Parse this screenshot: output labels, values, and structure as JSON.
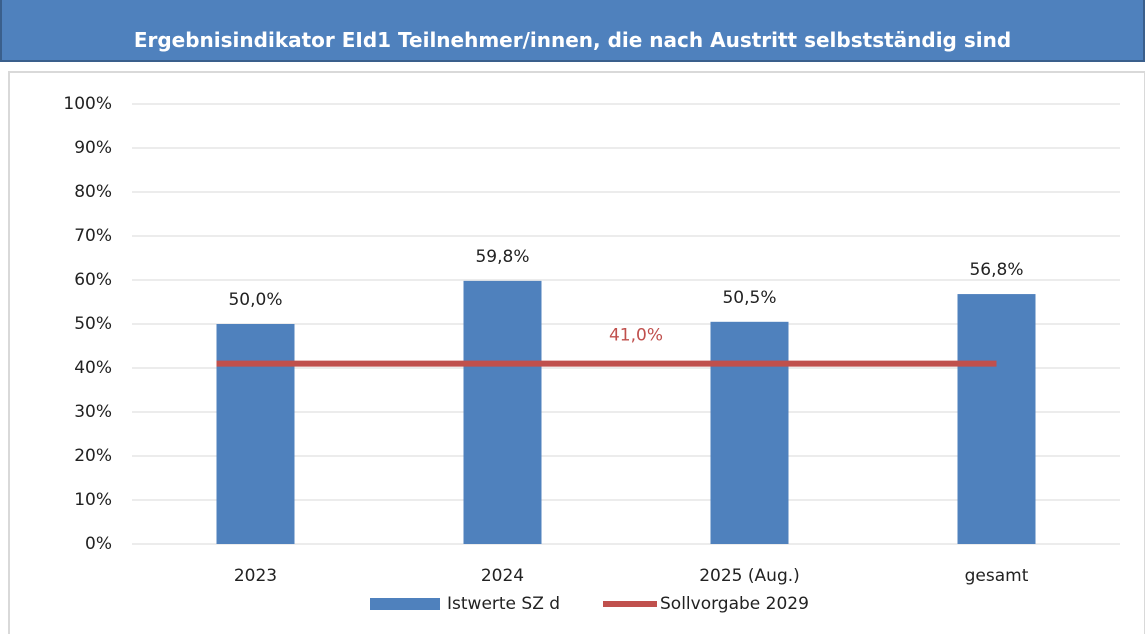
{
  "chart_data": {
    "type": "bar",
    "title": "Ergebnisindikator EId1 Teilnehmer/innen, die nach Austritt selbstständig sind",
    "categories": [
      "2023",
      "2024",
      "2025 (Aug.)",
      "gesamt"
    ],
    "series": [
      {
        "name": "Istwerte SZ d",
        "type": "bar",
        "color": "#4f81bd",
        "values": [
          50.0,
          59.8,
          50.5,
          56.8
        ],
        "value_labels": [
          "50,0%",
          "59,8%",
          "50,5%",
          "56,8%"
        ]
      },
      {
        "name": "Sollvorgabe 2029",
        "type": "line",
        "color": "#c0504d",
        "values": [
          41.0,
          41.0,
          41.0,
          41.0
        ],
        "value_labels": [
          null,
          null,
          "41,0%",
          null
        ]
      }
    ],
    "ylim": [
      0,
      100
    ],
    "yticks": [
      {
        "value": 0,
        "label": "0%"
      },
      {
        "value": 10,
        "label": "10%"
      },
      {
        "value": 20,
        "label": "20%"
      },
      {
        "value": 30,
        "label": "30%"
      },
      {
        "value": 40,
        "label": "40%"
      },
      {
        "value": 50,
        "label": "50%"
      },
      {
        "value": 60,
        "label": "60%"
      },
      {
        "value": 70,
        "label": "70%"
      },
      {
        "value": 80,
        "label": "80%"
      },
      {
        "value": 90,
        "label": "90%"
      },
      {
        "value": 100,
        "label": "100%"
      }
    ],
    "grid": true,
    "legend": "bottom"
  }
}
